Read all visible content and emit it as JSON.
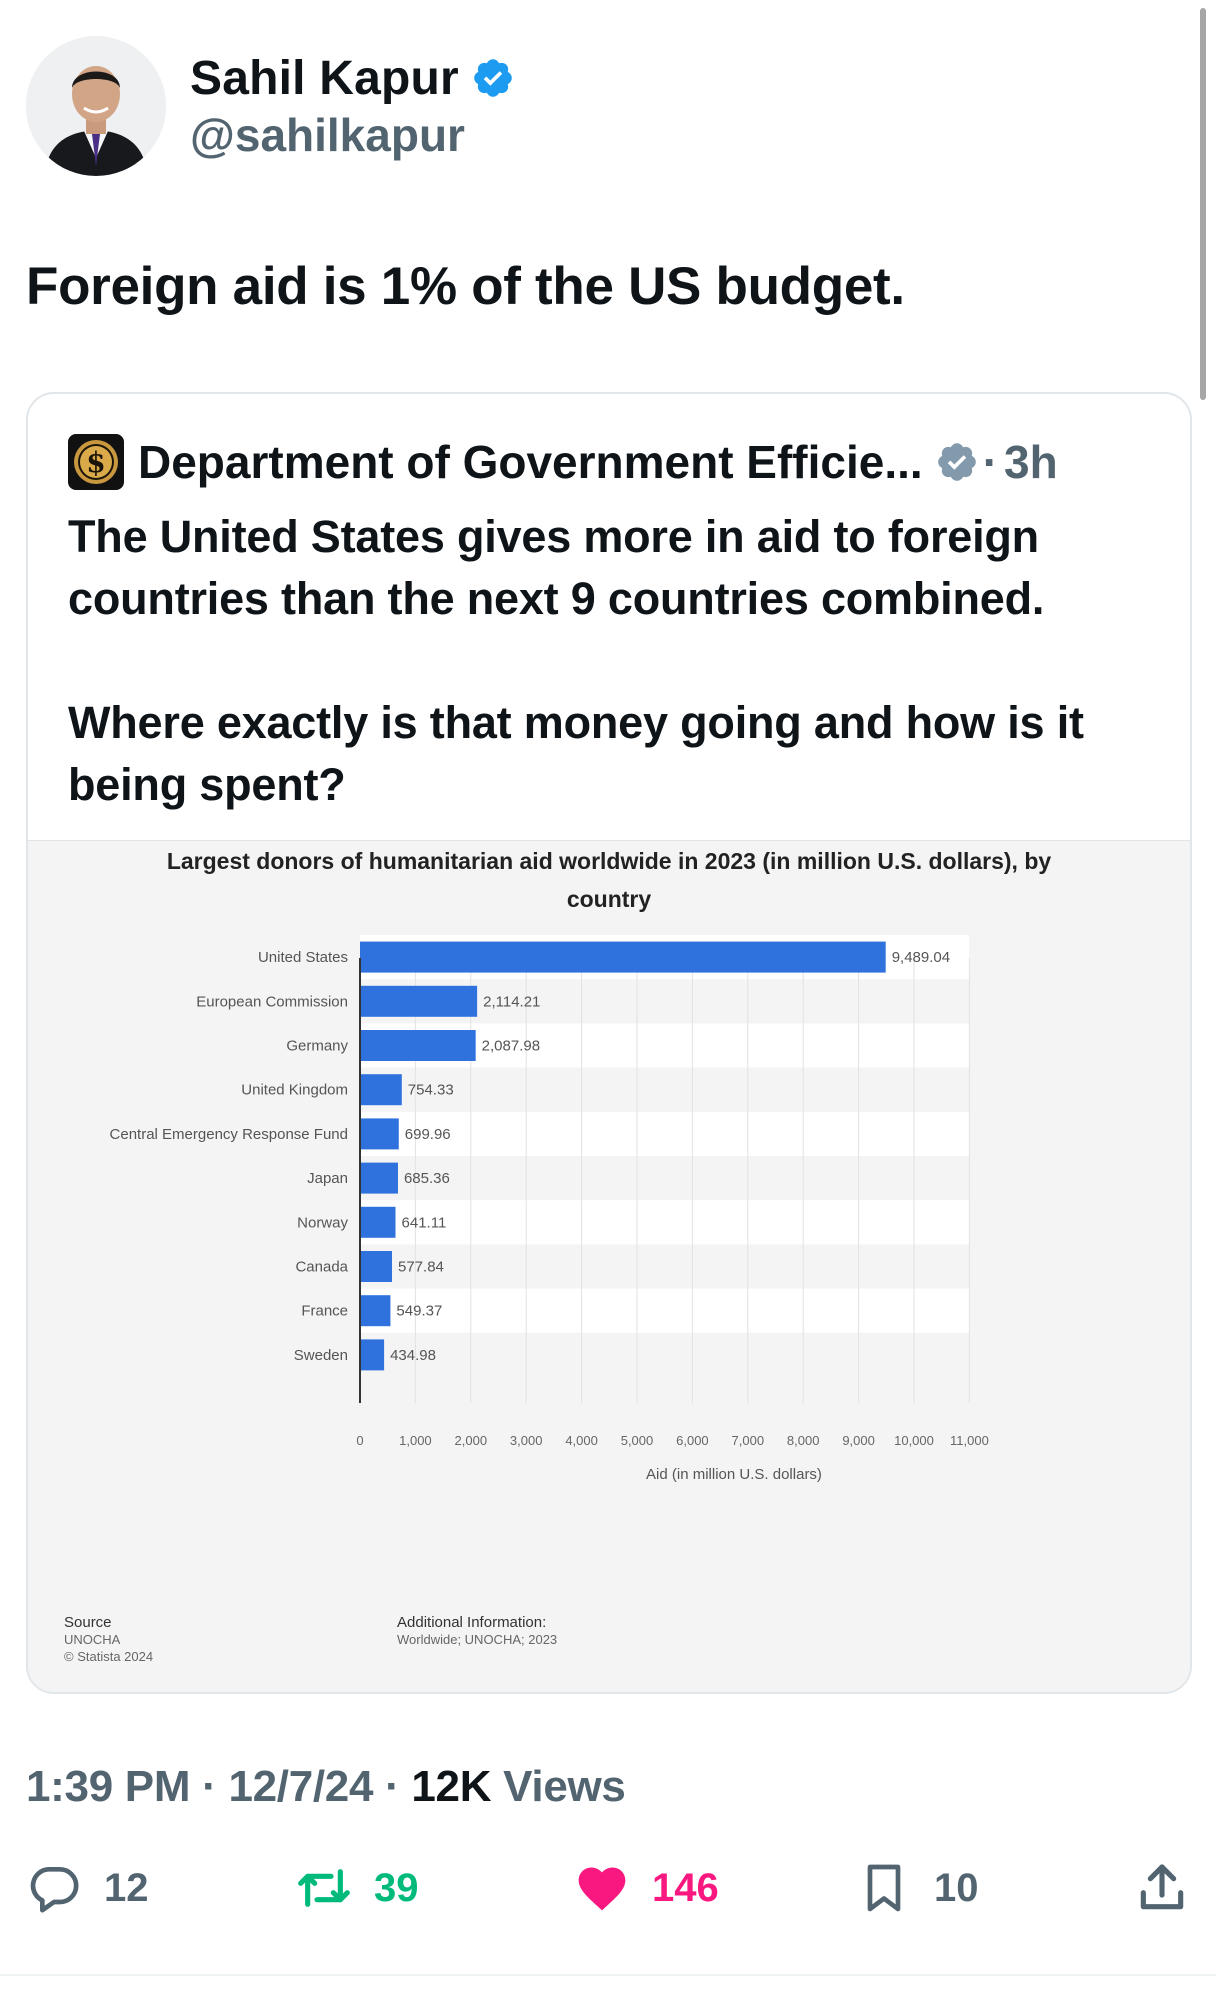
{
  "author": {
    "display_name": "Sahil Kapur",
    "handle": "@sahilkapur",
    "verified_color": "#1d9bf0"
  },
  "tweet": {
    "text": "Foreign aid is 1% of the US budget."
  },
  "quoted": {
    "account_name": "Department of Government Efficie...",
    "badge_color": "#829aab",
    "separator": "·",
    "time": "3h",
    "paragraphs": [
      "The United States gives more in aid to foreign countries than the next 9 countries combined.",
      "Where exactly is that money going and how is it being spent?"
    ]
  },
  "chart_data": {
    "type": "bar",
    "orientation": "horizontal",
    "title": "Largest donors of humanitarian aid worldwide in 2023 (in million U.S. dollars), by country",
    "xlabel": "Aid (in million U.S. dollars)",
    "ylabel": "",
    "categories": [
      "United States",
      "European Commission",
      "Germany",
      "United Kingdom",
      "Central Emergency Response Fund",
      "Japan",
      "Norway",
      "Canada",
      "France",
      "Sweden"
    ],
    "values": [
      9489.04,
      2114.21,
      2087.98,
      754.33,
      699.96,
      685.36,
      641.11,
      577.84,
      549.37,
      434.98
    ],
    "value_labels": [
      "9,489.04",
      "2,114.21",
      "2,087.98",
      "754.33",
      "699.96",
      "685.36",
      "641.11",
      "577.84",
      "549.37",
      "434.98"
    ],
    "xlim": [
      0,
      11000
    ],
    "xticks": [
      0,
      1000,
      2000,
      3000,
      4000,
      5000,
      6000,
      7000,
      8000,
      9000,
      10000,
      11000
    ],
    "xtick_labels": [
      "0",
      "1,000",
      "2,000",
      "3,000",
      "4,000",
      "5,000",
      "6,000",
      "7,000",
      "8,000",
      "9,000",
      "10,000",
      "11,000"
    ],
    "grid": true,
    "legend": "none",
    "bar_color": "#2f72de",
    "source_heading": "Source",
    "source_lines": [
      "UNOCHA",
      "© Statista 2024"
    ],
    "additional_heading": "Additional Information:",
    "additional_text": "Worldwide; UNOCHA; 2023"
  },
  "footer": {
    "time": "1:39 PM",
    "sep1": "·",
    "date": "12/7/24",
    "sep2": "·",
    "views": "12K",
    "views_label": "Views"
  },
  "actions": {
    "replies": "12",
    "reposts": "39",
    "likes": "146",
    "bookmarks": "10",
    "like_color": "#f91880",
    "repost_color": "#00ba7c"
  }
}
